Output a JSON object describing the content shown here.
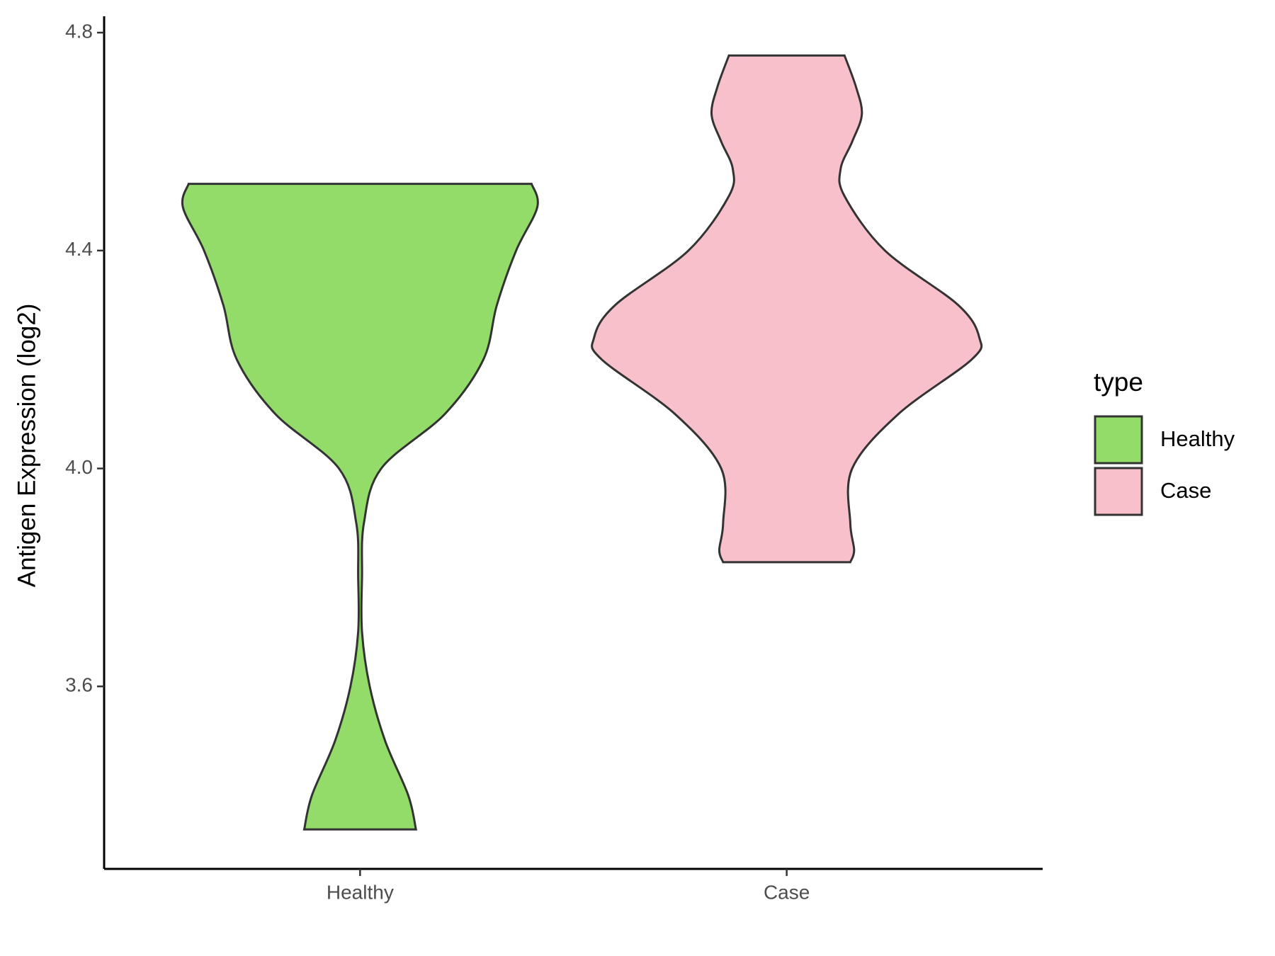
{
  "chart_data": {
    "type": "violin",
    "ylabel": "Antigen Expression (log2)",
    "categories": [
      "Healthy",
      "Case"
    ],
    "legend_title": "type",
    "legend": "right",
    "ylim": [
      3.265,
      4.83
    ],
    "yticks": [
      3.6,
      4.0,
      4.4,
      4.8
    ],
    "series": [
      {
        "name": "Healthy",
        "color": "#93dc6a",
        "y": [
          4.5225,
          4.48,
          4.4,
          4.3,
          4.2,
          4.1,
          4.0,
          3.9,
          3.8,
          3.7,
          3.6,
          3.5,
          3.4,
          3.3375
        ],
        "density": [
          0.89,
          0.92,
          0.81,
          0.71,
          0.64,
          0.44,
          0.11,
          0.02,
          0.01,
          0.01,
          0.05,
          0.13,
          0.25,
          0.29
        ]
      },
      {
        "name": "Case",
        "color": "#f8c0cb",
        "y": [
          4.758,
          4.7,
          4.65,
          4.6,
          4.55,
          4.5,
          4.4,
          4.3,
          4.24,
          4.2,
          4.1,
          4.0,
          3.9,
          3.85,
          3.828
        ],
        "density": [
          0.3,
          0.36,
          0.39,
          0.34,
          0.28,
          0.3,
          0.51,
          0.89,
          1.0,
          0.96,
          0.58,
          0.34,
          0.33,
          0.35,
          0.33
        ]
      }
    ]
  }
}
